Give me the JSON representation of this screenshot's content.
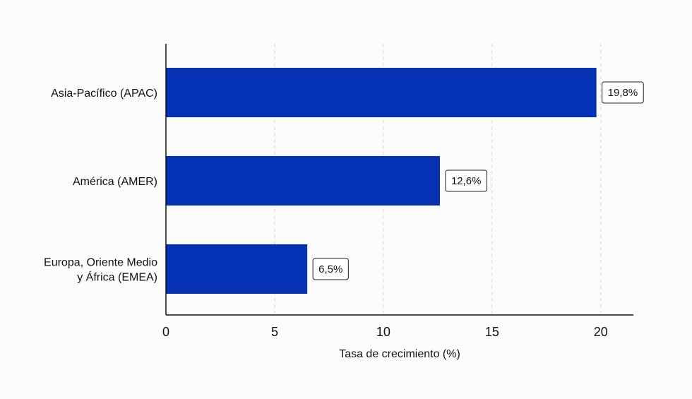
{
  "chart_data": {
    "type": "bar",
    "orientation": "horizontal",
    "categories": [
      [
        "Asia-Pacífico (APAC)"
      ],
      [
        "América (AMER)"
      ],
      [
        "Europa, Oriente Medio",
        "y África (EMEA)"
      ]
    ],
    "values": [
      19.8,
      12.6,
      6.5
    ],
    "data_labels": [
      "19,8%",
      "12,6%",
      "6,5%"
    ],
    "xlabel": "Tasa de crecimiento (%)",
    "ylabel": "",
    "title": "",
    "xlim": [
      0,
      21.5
    ],
    "xticks": [
      0,
      5,
      10,
      15,
      20
    ],
    "xtick_labels": [
      "0",
      "5",
      "10",
      "15",
      "20"
    ],
    "grid": "vertical-dashed",
    "legend": "none",
    "colors": {
      "bar": "#0532b4",
      "grid": "#d9d9d9",
      "axis": "#111111",
      "label_border": "#222222",
      "background": "#fcfcfc"
    }
  }
}
